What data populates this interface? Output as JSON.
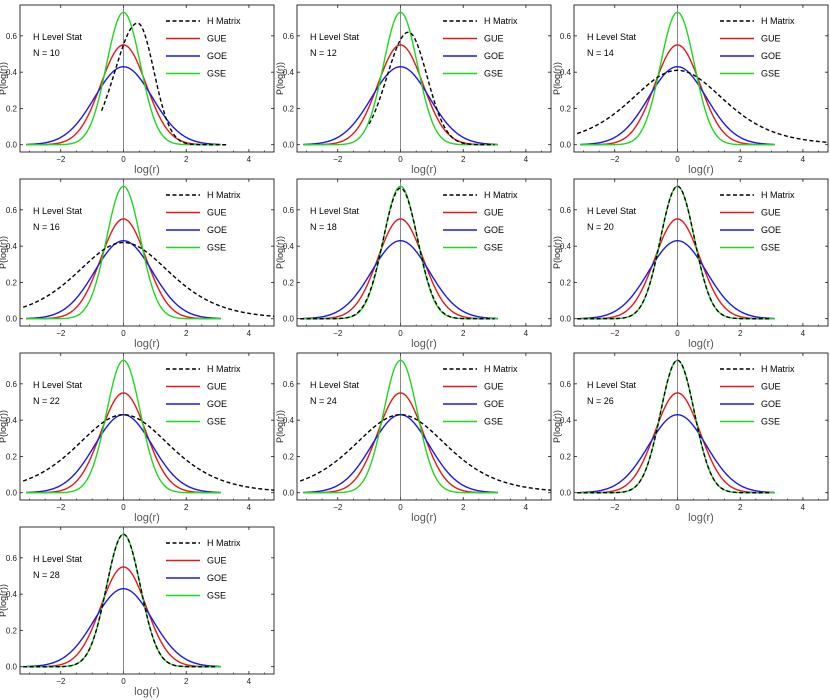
{
  "chart_data": [
    {
      "type": "line",
      "inset_title": "H Level Stat",
      "inset_n": "N = 10",
      "xlabel": "log(r)",
      "ylabel": "P(log(r))",
      "h_matrix": {
        "shape": "skew",
        "mu": 0.45,
        "peak": 0.67,
        "s_left": 0.72,
        "s_right": 0.52,
        "x_range": [
          -0.7,
          3.3
        ]
      }
    },
    {
      "type": "line",
      "inset_title": "H Level Stat",
      "inset_n": "N = 12",
      "xlabel": "log(r)",
      "ylabel": "P(log(r))",
      "h_matrix": {
        "shape": "skew",
        "mu": 0.25,
        "peak": 0.62,
        "s_left": 0.68,
        "s_right": 0.6,
        "x_range": [
          -1.0,
          3.0
        ]
      }
    },
    {
      "type": "line",
      "inset_title": "H Level Stat",
      "inset_n": "N = 14",
      "xlabel": "log(r)",
      "ylabel": "P(log(r))",
      "h_matrix": {
        "shape": "logistic",
        "mu": 0.0,
        "peak": 0.41,
        "x_range": [
          -3.2,
          4.8
        ]
      }
    },
    {
      "type": "line",
      "inset_title": "H Level Stat",
      "inset_n": "N = 16",
      "xlabel": "log(r)",
      "ylabel": "P(log(r))",
      "h_matrix": {
        "shape": "logistic",
        "mu": 0.0,
        "peak": 0.42,
        "x_range": [
          -3.2,
          4.8
        ]
      }
    },
    {
      "type": "line",
      "inset_title": "H Level Stat",
      "inset_n": "N = 18",
      "xlabel": "log(r)",
      "ylabel": "P(log(r))",
      "h_matrix": {
        "shape": "gauss",
        "mu": 0.0,
        "peak": 0.72,
        "sigma": 0.55,
        "x_range": [
          -3.2,
          3.0
        ]
      }
    },
    {
      "type": "line",
      "inset_title": "H Level Stat",
      "inset_n": "N = 20",
      "xlabel": "log(r)",
      "ylabel": "P(log(r))",
      "h_matrix": {
        "shape": "gauss",
        "mu": 0.0,
        "peak": 0.73,
        "sigma": 0.54,
        "x_range": [
          -3.2,
          3.0
        ]
      }
    },
    {
      "type": "line",
      "inset_title": "H Level Stat",
      "inset_n": "N = 22",
      "xlabel": "log(r)",
      "ylabel": "P(log(r))",
      "h_matrix": {
        "shape": "logistic",
        "mu": 0.0,
        "peak": 0.43,
        "x_range": [
          -3.2,
          4.8
        ]
      }
    },
    {
      "type": "line",
      "inset_title": "H Level Stat",
      "inset_n": "N = 24",
      "xlabel": "log(r)",
      "ylabel": "P(log(r))",
      "h_matrix": {
        "shape": "logistic",
        "mu": 0.0,
        "peak": 0.43,
        "x_range": [
          -3.2,
          4.8
        ]
      }
    },
    {
      "type": "line",
      "inset_title": "H Level Stat",
      "inset_n": "N = 26",
      "xlabel": "log(r)",
      "ylabel": "P(log(r))",
      "h_matrix": {
        "shape": "gauss",
        "mu": 0.0,
        "peak": 0.73,
        "sigma": 0.54,
        "x_range": [
          -3.2,
          3.0
        ]
      }
    },
    {
      "type": "line",
      "inset_title": "H Level Stat",
      "inset_n": "N = 28",
      "xlabel": "log(r)",
      "ylabel": "P(log(r))",
      "h_matrix": {
        "shape": "gauss",
        "mu": 0.0,
        "peak": 0.73,
        "sigma": 0.54,
        "x_range": [
          -3.2,
          3.0
        ]
      }
    }
  ],
  "shared": {
    "xlim": [
      -3.3,
      4.8
    ],
    "ylim": [
      -0.04,
      0.77
    ],
    "xticks": [
      -2,
      0,
      2,
      4
    ],
    "xtick_labels": [
      "−2",
      "0",
      "2",
      "4"
    ],
    "yticks": [
      0.0,
      0.2,
      0.4,
      0.6
    ],
    "ytick_labels": [
      "0.0",
      "0.2",
      "0.4",
      "0.6"
    ],
    "reference_x_range": [
      -3.1,
      3.1
    ],
    "legend": [
      {
        "name": "H Matrix",
        "color": "#000000",
        "dashed": true
      },
      {
        "name": "GUE",
        "color": "#e41a1a",
        "dashed": false
      },
      {
        "name": "GOE",
        "color": "#1a1ae6",
        "dashed": false
      },
      {
        "name": "GSE",
        "color": "#1ed81e",
        "dashed": false
      }
    ],
    "reference_curves": [
      {
        "name": "GUE",
        "peak": 0.55,
        "sigma": 0.72,
        "color": "#e41a1a"
      },
      {
        "name": "GOE",
        "peak": 0.43,
        "sigma": 0.92,
        "color": "#1a1ae6"
      },
      {
        "name": "GSE",
        "peak": 0.73,
        "sigma": 0.54,
        "color": "#1ed81e"
      }
    ]
  }
}
